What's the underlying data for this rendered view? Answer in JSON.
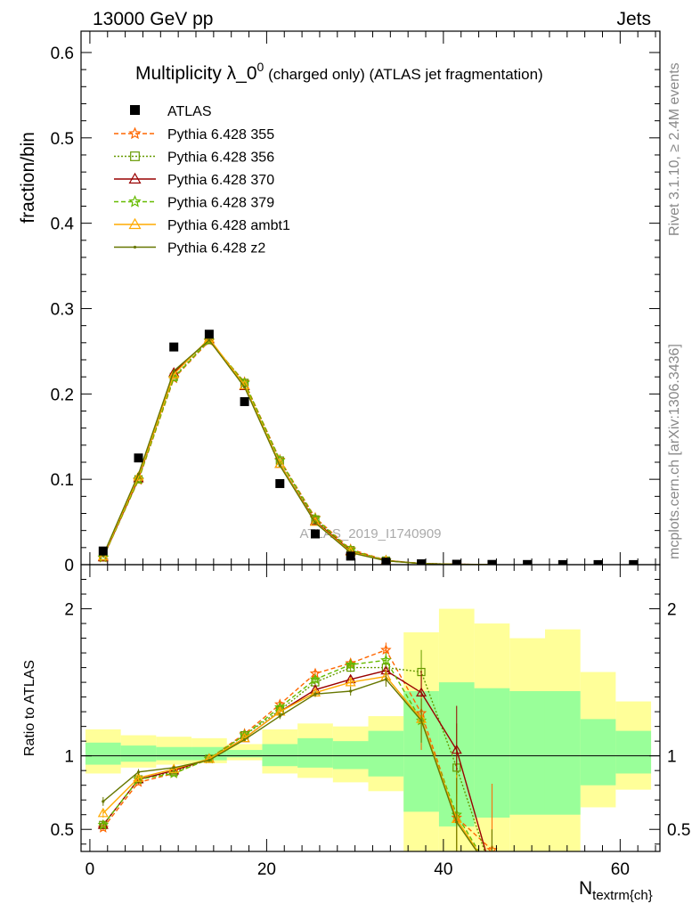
{
  "header": {
    "left": "13000 GeV pp",
    "right": "Jets"
  },
  "side_labels": {
    "rivet": "Rivet 3.1.10, ≥ 2.4M events",
    "mcplots": "mcplots.cern.ch [arXiv:1306.3436]"
  },
  "watermark": "ATLAS_2019_I1740909",
  "chart_data": [
    {
      "type": "line",
      "panel": "main",
      "title_parts": {
        "pre": "Multiplicity λ_0",
        "sup": "0",
        "post": " (charged only) (ATLAS jet fragmentation)"
      },
      "ylabel": "fraction/bin",
      "xlim": [
        -1,
        64.5
      ],
      "ylim": [
        0,
        0.625
      ],
      "yticks": [
        {
          "v": 0,
          "label": "0"
        },
        {
          "v": 0.1,
          "label": "0.1"
        },
        {
          "v": 0.2,
          "label": "0.2"
        },
        {
          "v": 0.3,
          "label": "0.3"
        },
        {
          "v": 0.4,
          "label": "0.4"
        },
        {
          "v": 0.5,
          "label": "0.5"
        },
        {
          "v": 0.6,
          "label": "0.6"
        }
      ],
      "data": {
        "name": "ATLAS",
        "x": [
          1.5,
          5.5,
          9.5,
          13.5,
          17.5,
          21.5,
          25.5,
          29.5,
          33.5,
          37.5,
          41.5,
          45.5,
          49.5,
          53.5,
          57.5,
          61.5
        ],
        "y": [
          0.016,
          0.125,
          0.255,
          0.27,
          0.191,
          0.095,
          0.036,
          0.01,
          0.003,
          0.001,
          0.0005,
          0.0003,
          0.0002,
          0.0001,
          0.0001,
          0.0001
        ]
      },
      "series": [
        {
          "name": "Pythia 6.428 355",
          "color": "#ff6600",
          "dash": "5,3",
          "marker": "star",
          "x": [
            1.5,
            5.5,
            9.5,
            13.5,
            17.5,
            21.5,
            25.5,
            29.5,
            33.5,
            37.5,
            41.5,
            45.5
          ],
          "y": [
            0.008,
            0.099,
            0.218,
            0.262,
            0.214,
            0.123,
            0.055,
            0.018,
            0.0052,
            0.0012,
            0.0003,
            0.0001
          ]
        },
        {
          "name": "Pythia 6.428 356",
          "color": "#669900",
          "dash": "2,2",
          "marker": "square",
          "x": [
            1.5,
            5.5,
            9.5,
            13.5,
            17.5,
            21.5,
            25.5,
            29.5,
            33.5,
            37.5,
            41.5,
            45.5
          ],
          "y": [
            0.0085,
            0.1,
            0.22,
            0.263,
            0.213,
            0.122,
            0.053,
            0.017,
            0.0048,
            0.0015,
            0.0005,
            0.0001
          ]
        },
        {
          "name": "Pythia 6.428 370",
          "color": "#990000",
          "dash": "",
          "marker": "triangle",
          "x": [
            1.5,
            5.5,
            9.5,
            13.5,
            17.5,
            21.5,
            25.5,
            29.5,
            33.5,
            37.5,
            41.5,
            45.5
          ],
          "y": [
            0.0085,
            0.101,
            0.225,
            0.264,
            0.209,
            0.118,
            0.051,
            0.016,
            0.0047,
            0.0014,
            0.0005,
            0.0001
          ]
        },
        {
          "name": "Pythia 6.428 379",
          "color": "#66bb00",
          "dash": "5,3",
          "marker": "star",
          "x": [
            1.5,
            5.5,
            9.5,
            13.5,
            17.5,
            21.5,
            25.5,
            29.5,
            33.5,
            37.5,
            41.5,
            45.5
          ],
          "y": [
            0.0085,
            0.1,
            0.219,
            0.263,
            0.213,
            0.122,
            0.054,
            0.017,
            0.0048,
            0.0012,
            0.0003,
            0.0001
          ]
        },
        {
          "name": "Pythia 6.428 ambt1",
          "color": "#ffaa00",
          "dash": "",
          "marker": "triangle",
          "x": [
            1.5,
            5.5,
            9.5,
            13.5,
            17.5,
            21.5,
            25.5,
            29.5,
            33.5,
            37.5,
            41.5,
            45.5
          ],
          "y": [
            0.0095,
            0.103,
            0.223,
            0.265,
            0.21,
            0.118,
            0.05,
            0.015,
            0.0046,
            0.0012,
            0.0003,
            0.0001
          ]
        },
        {
          "name": "Pythia 6.428 z2",
          "color": "#667700",
          "dash": "",
          "marker": "dot",
          "x": [
            1.5,
            5.5,
            9.5,
            13.5,
            17.5,
            21.5,
            25.5,
            29.5,
            33.5,
            37.5,
            41.5,
            45.5
          ],
          "y": [
            0.011,
            0.106,
            0.227,
            0.263,
            0.208,
            0.116,
            0.049,
            0.014,
            0.0045,
            0.0012,
            0.0003,
            0.0001
          ]
        }
      ]
    },
    {
      "type": "line",
      "panel": "ratio",
      "ylabel": "Ratio to ATLAS",
      "xlabel": "N",
      "xlabel_sub": "textrm{ch}",
      "xlim": [
        -1,
        64.5
      ],
      "ylim": [
        0.35,
        2.3
      ],
      "xticks": [
        {
          "v": 0,
          "label": "0"
        },
        {
          "v": 20,
          "label": "20"
        },
        {
          "v": 40,
          "label": "40"
        },
        {
          "v": 60,
          "label": "60"
        }
      ],
      "yticks": [
        {
          "v": 0.5,
          "label": "0.5"
        },
        {
          "v": 1,
          "label": "1"
        },
        {
          "v": 2,
          "label": "2"
        }
      ],
      "bands": {
        "edges": [
          -0.5,
          3.5,
          7.5,
          11.5,
          15.5,
          19.5,
          23.5,
          27.5,
          31.5,
          35.5,
          39.5,
          43.5,
          47.5,
          51.5,
          55.5,
          59.5,
          63.5
        ],
        "yellow_lo": [
          0.88,
          0.92,
          0.94,
          0.95,
          0.97,
          0.88,
          0.85,
          0.82,
          0.76,
          0.35,
          0.35,
          0.35,
          0.35,
          0.35,
          0.65,
          0.77,
          0.85
        ],
        "yellow_hi": [
          1.18,
          1.14,
          1.13,
          1.12,
          1.08,
          1.18,
          1.22,
          1.2,
          1.27,
          1.84,
          2.0,
          1.9,
          1.8,
          1.86,
          1.57,
          1.37,
          1.27
        ],
        "green_lo": [
          0.94,
          0.96,
          0.97,
          0.97,
          0.99,
          0.93,
          0.92,
          0.91,
          0.86,
          0.62,
          0.52,
          0.58,
          0.6,
          0.6,
          0.8,
          0.88,
          0.92
        ],
        "green_hi": [
          1.09,
          1.07,
          1.06,
          1.06,
          1.04,
          1.08,
          1.12,
          1.1,
          1.17,
          1.44,
          1.5,
          1.46,
          1.44,
          1.44,
          1.25,
          1.17,
          1.12
        ]
      },
      "series": [
        {
          "name": "Pythia 6.428 355",
          "color": "#ff6600",
          "dash": "5,3",
          "marker": "star",
          "x": [
            1.5,
            5.5,
            9.5,
            13.5,
            17.5,
            21.5,
            25.5,
            29.5,
            33.5,
            37.5,
            41.5,
            45.5
          ],
          "y": [
            0.51,
            0.82,
            0.88,
            0.98,
            1.15,
            1.35,
            1.56,
            1.63,
            1.72,
            1.29,
            0.58,
            0.36
          ],
          "err": [
            0.02,
            0.02,
            0.01,
            0.01,
            0.01,
            0.02,
            0.02,
            0.03,
            0.05,
            0.25,
            0.35,
            0.45
          ]
        },
        {
          "name": "Pythia 6.428 356",
          "color": "#669900",
          "dash": "2,2",
          "marker": "square",
          "x": [
            1.5,
            5.5,
            9.5,
            13.5,
            17.5,
            21.5,
            25.5,
            29.5,
            33.5,
            37.5,
            41.5,
            45.5
          ],
          "y": [
            0.53,
            0.84,
            0.89,
            0.98,
            1.14,
            1.31,
            1.5,
            1.6,
            1.6,
            1.57,
            0.92,
            0.2
          ],
          "err": [
            0.02,
            0.02,
            0.01,
            0.01,
            0.01,
            0.02,
            0.02,
            0.03,
            0.05,
            0.15,
            0.3,
            0.3
          ]
        },
        {
          "name": "Pythia 6.428 370",
          "color": "#990000",
          "dash": "",
          "marker": "triangle",
          "x": [
            1.5,
            5.5,
            9.5,
            13.5,
            17.5,
            21.5,
            25.5,
            29.5,
            33.5,
            37.5,
            41.5,
            45.5
          ],
          "y": [
            0.53,
            0.84,
            0.9,
            0.98,
            1.12,
            1.3,
            1.45,
            1.52,
            1.58,
            1.43,
            1.04,
            0.2
          ],
          "err": [
            0.02,
            0.02,
            0.01,
            0.01,
            0.01,
            0.02,
            0.02,
            0.03,
            0.05,
            0.15,
            0.3,
            0.3
          ]
        },
        {
          "name": "Pythia 6.428 379",
          "color": "#66bb00",
          "dash": "5,3",
          "marker": "star",
          "x": [
            1.5,
            5.5,
            9.5,
            13.5,
            17.5,
            21.5,
            25.5,
            29.5,
            33.5,
            37.5,
            41.5,
            45.5
          ],
          "y": [
            0.53,
            0.84,
            0.88,
            0.98,
            1.14,
            1.33,
            1.52,
            1.62,
            1.65,
            1.24,
            0.6,
            0.2
          ],
          "err": [
            0.02,
            0.02,
            0.01,
            0.01,
            0.01,
            0.02,
            0.02,
            0.03,
            0.05,
            0.15,
            0.3,
            0.3
          ]
        },
        {
          "name": "Pythia 6.428 ambt1",
          "color": "#ffaa00",
          "dash": "",
          "marker": "triangle",
          "x": [
            1.5,
            5.5,
            9.5,
            13.5,
            17.5,
            21.5,
            25.5,
            29.5,
            33.5,
            37.5,
            41.5,
            45.5
          ],
          "y": [
            0.61,
            0.85,
            0.91,
            0.98,
            1.12,
            1.3,
            1.43,
            1.5,
            1.54,
            1.25,
            0.57,
            0.2
          ],
          "err": [
            0.03,
            0.02,
            0.01,
            0.01,
            0.01,
            0.02,
            0.02,
            0.03,
            0.05,
            0.15,
            0.3,
            0.3
          ]
        },
        {
          "name": "Pythia 6.428 z2",
          "color": "#667700",
          "dash": "",
          "marker": "dot",
          "x": [
            1.5,
            5.5,
            9.5,
            13.5,
            17.5,
            21.5,
            25.5,
            29.5,
            33.5,
            37.5,
            41.5,
            45.5
          ],
          "y": [
            0.69,
            0.89,
            0.92,
            0.97,
            1.11,
            1.27,
            1.42,
            1.44,
            1.52,
            1.24,
            0.55,
            0.2
          ],
          "err": [
            0.03,
            0.02,
            0.01,
            0.01,
            0.01,
            0.02,
            0.02,
            0.03,
            0.05,
            0.15,
            0.3,
            0.3
          ]
        }
      ]
    }
  ]
}
